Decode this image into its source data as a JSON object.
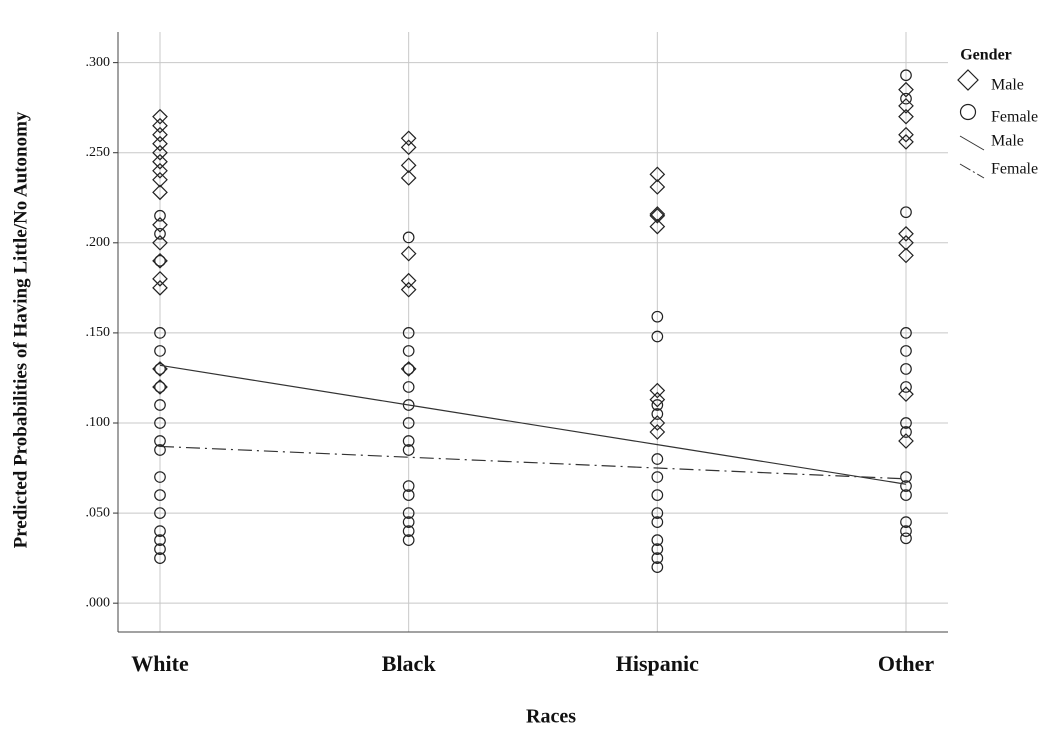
{
  "chart_data": {
    "type": "scatter",
    "x_label": "Races",
    "y_label": "Predicted Probabilities of Having Little/No Autonomy",
    "categories": [
      "White",
      "Black",
      "Hispanic",
      "Other"
    ],
    "ylim": [
      -0.016,
      0.317
    ],
    "yticks": [
      {
        "value": 0,
        "label": ".000"
      },
      {
        "value": 0.05,
        "label": ".050"
      },
      {
        "value": 0.1,
        "label": ".100"
      },
      {
        "value": 0.15,
        "label": ".150"
      },
      {
        "value": 0.2,
        "label": ".200"
      },
      {
        "value": 0.25,
        "label": ".250"
      },
      {
        "value": 0.3,
        "label": ".300"
      }
    ],
    "grid": true,
    "legend_title": "Gender",
    "series": [
      {
        "name": "Male",
        "marker": "diamond",
        "color": "#222222",
        "values": [
          [
            0.27,
            0.265,
            0.26,
            0.255,
            0.25,
            0.245,
            0.24,
            0.235,
            0.228,
            0.21,
            0.2,
            0.19,
            0.18,
            0.175,
            0.13,
            0.12
          ],
          [
            0.258,
            0.253,
            0.243,
            0.236,
            0.194,
            0.179,
            0.174,
            0.13
          ],
          [
            0.238,
            0.231,
            0.216,
            0.215,
            0.209,
            0.118,
            0.113,
            0.1,
            0.095
          ],
          [
            0.285,
            0.276,
            0.27,
            0.26,
            0.256,
            0.205,
            0.2,
            0.193,
            0.116,
            0.09
          ]
        ]
      },
      {
        "name": "Female",
        "marker": "circle",
        "color": "#222222",
        "values": [
          [
            0.215,
            0.205,
            0.19,
            0.15,
            0.14,
            0.13,
            0.12,
            0.11,
            0.1,
            0.09,
            0.085,
            0.07,
            0.06,
            0.05,
            0.04,
            0.035,
            0.03,
            0.025
          ],
          [
            0.203,
            0.15,
            0.14,
            0.13,
            0.12,
            0.11,
            0.1,
            0.09,
            0.085,
            0.065,
            0.06,
            0.05,
            0.045,
            0.04,
            0.035
          ],
          [
            0.159,
            0.148,
            0.11,
            0.105,
            0.08,
            0.07,
            0.06,
            0.05,
            0.045,
            0.035,
            0.03,
            0.025,
            0.02
          ],
          [
            0.293,
            0.28,
            0.217,
            0.15,
            0.14,
            0.13,
            0.12,
            0.1,
            0.095,
            0.07,
            0.065,
            0.06,
            0.045,
            0.04,
            0.036
          ]
        ]
      }
    ],
    "fit_lines": [
      {
        "name": "Male",
        "dash": "solid",
        "color": "#333333",
        "values": [
          0.132,
          0.11,
          0.088,
          0.066
        ]
      },
      {
        "name": "Female",
        "dash": "dashdot",
        "color": "#333333",
        "values": [
          0.087,
          0.081,
          0.075,
          0.069
        ]
      }
    ]
  }
}
